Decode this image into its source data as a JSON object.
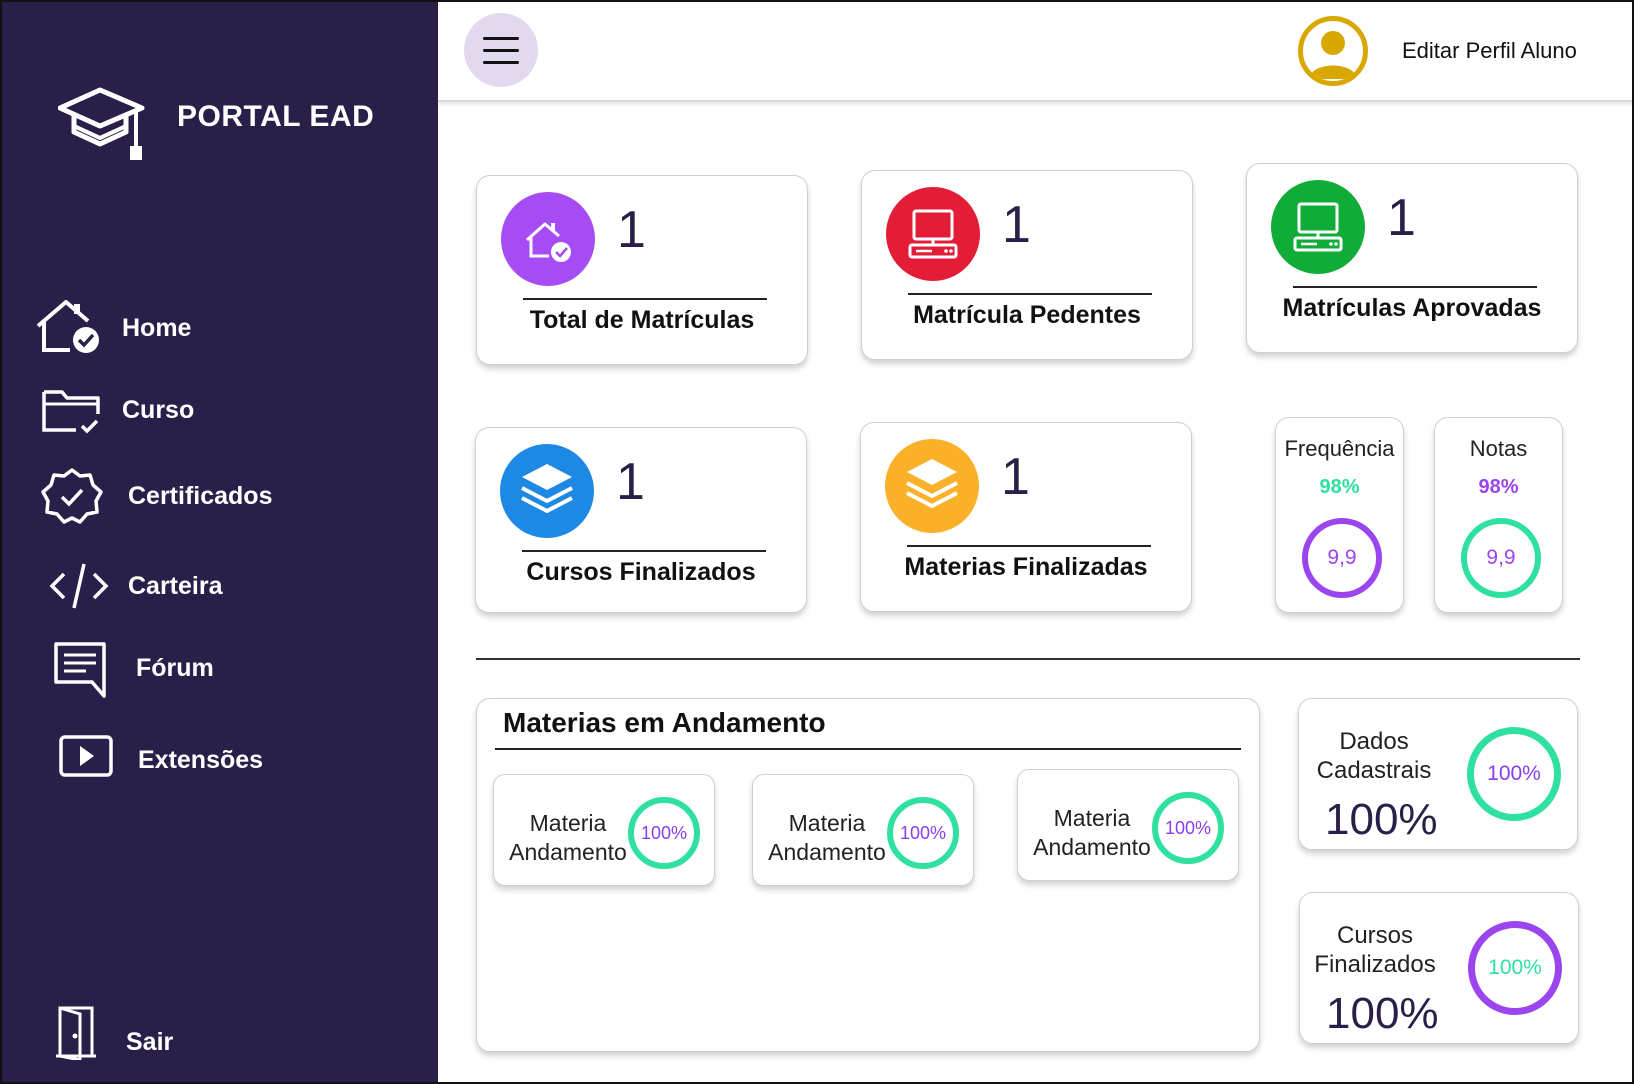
{
  "sidebar": {
    "brand": "PORTAL EAD",
    "items": [
      {
        "label": "Home"
      },
      {
        "label": "Curso"
      },
      {
        "label": "Certificados"
      },
      {
        "label": "Carteira"
      },
      {
        "label": "Fórum"
      },
      {
        "label": "Extensões"
      }
    ],
    "logout_label": "Sair"
  },
  "header": {
    "profile_label": "Editar Perfil Aluno"
  },
  "stats": [
    {
      "value": "1",
      "label": "Total de Matrículas",
      "color": "#a64cf4",
      "icon": "home-check-icon"
    },
    {
      "value": "1",
      "label": "Matrícula Pedentes",
      "color": "#e31d37",
      "icon": "computer-icon"
    },
    {
      "value": "1",
      "label": "Matrículas Aprovadas",
      "color": "#0fad37",
      "icon": "computer-icon"
    },
    {
      "value": "1",
      "label": "Cursos Finalizados",
      "color": "#1e88e5",
      "icon": "layers-icon"
    },
    {
      "value": "1",
      "label": "Materias Finalizadas",
      "color": "#fbb02a",
      "icon": "layers-icon"
    }
  ],
  "metrics": [
    {
      "title": "Frequência",
      "percent": "98%",
      "score": "9,9",
      "percent_color": "#2fe0a0",
      "ring_color": "#9b45ee"
    },
    {
      "title": "Notas",
      "percent": "98%",
      "score": "9,9",
      "percent_color": "#9b45ee",
      "ring_color": "#2fe0a0"
    }
  ],
  "in_progress": {
    "title": "Materias em Andamento",
    "items": [
      {
        "line1": "Materia",
        "line2": "Andamento",
        "percent": "100%"
      },
      {
        "line1": "Materia",
        "line2": "Andamento",
        "percent": "100%"
      },
      {
        "line1": "Materia",
        "line2": "Andamento",
        "percent": "100%"
      }
    ]
  },
  "summary": [
    {
      "line1": "Dados",
      "line2": "Cadastrais",
      "value": "100%",
      "ring_percent": "100%",
      "ring_color": "#2fe0a0",
      "ring_text_color": "#8a3df0"
    },
    {
      "line1": "Cursos",
      "line2": "Finalizados",
      "value": "100%",
      "ring_percent": "100%",
      "ring_color": "#9b45ee",
      "ring_text_color": "#2fe0a0"
    }
  ]
}
